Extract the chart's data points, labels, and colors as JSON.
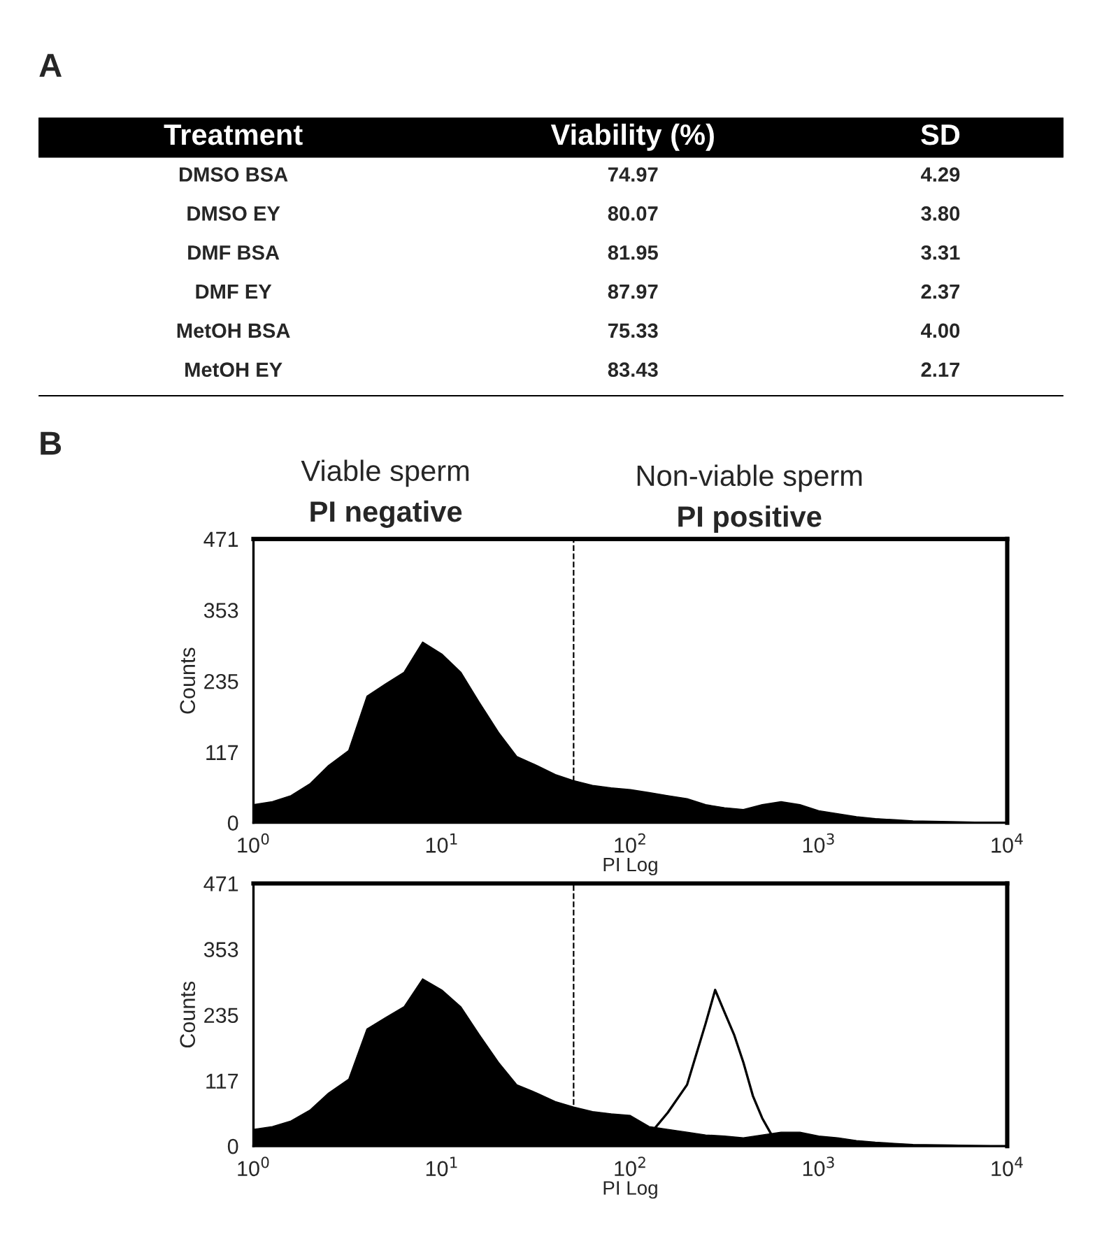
{
  "chart_data": [
    {
      "type": "other",
      "title": "A",
      "annotations": [
        "Treatment",
        "Viability (%)",
        "SD",
        "DMSO BSA",
        "74.97",
        "4.29",
        "DMSO EY",
        "80.07",
        "3.80",
        "DMF BSA",
        "81.95",
        "3.31",
        "DMF EY",
        "87.97",
        "2.37",
        "MetOH BSA",
        "75.33",
        "4.00",
        "MetOH EY",
        "83.43",
        "2.17"
      ]
    },
    {
      "type": "area",
      "title": "B",
      "annotations": [
        "Viable sperm",
        "PI negative",
        "Non-viable sperm",
        "PI positive"
      ],
      "xlabel": "PI Log",
      "ylabel": "Counts",
      "log": "x",
      "grid": false,
      "legend": false,
      "xlim": [
        1,
        10000
      ],
      "ylim": [
        0,
        471
      ],
      "xticks": [
        {
          "value": 1,
          "label": "10$^{0}$"
        },
        {
          "value": 10,
          "label": "10$^{1}$"
        },
        {
          "value": 100,
          "label": "10$^{2}$"
        },
        {
          "value": 1000,
          "label": "10$^{3}$"
        },
        {
          "value": 10000,
          "label": "10$^{4}$"
        }
      ],
      "yticks": [
        0,
        117,
        235,
        353,
        471
      ],
      "ref_lines": [
        {
          "axis": "x",
          "value": 50,
          "label": null,
          "color": "#000000",
          "line_style": "dashed"
        }
      ],
      "series": [
        {
          "color": "#000000",
          "x": [
            1,
            1.26,
            1.58,
            2,
            2.5,
            3.2,
            4,
            5,
            6.3,
            7.9,
            10,
            12.6,
            15.8,
            20,
            25,
            32,
            40,
            50,
            63,
            79,
            100,
            126,
            158,
            200,
            251,
            316,
            398,
            501,
            631,
            794,
            1000,
            1259,
            1585,
            1995,
            2512,
            3162,
            5012,
            10000
          ],
          "values": [
            30,
            35,
            45,
            65,
            95,
            120,
            210,
            230,
            250,
            300,
            280,
            250,
            200,
            150,
            110,
            95,
            80,
            70,
            62,
            58,
            55,
            50,
            45,
            40,
            30,
            25,
            22,
            30,
            35,
            30,
            20,
            15,
            10,
            7,
            5,
            3,
            2,
            0
          ]
        }
      ]
    },
    {
      "type": "area",
      "xlabel": "PI Log",
      "ylabel": "Counts",
      "log": "x",
      "grid": false,
      "legend": false,
      "xlim": [
        1,
        10000
      ],
      "ylim": [
        0,
        471
      ],
      "xticks": [
        {
          "value": 1,
          "label": "10$^{0}$"
        },
        {
          "value": 10,
          "label": "10$^{1}$"
        },
        {
          "value": 100,
          "label": "10$^{2}$"
        },
        {
          "value": 1000,
          "label": "10$^{3}$"
        },
        {
          "value": 10000,
          "label": "10$^{4}$"
        }
      ],
      "yticks": [
        0,
        117,
        235,
        353,
        471
      ],
      "ref_lines": [
        {
          "axis": "x",
          "value": 50,
          "label": null,
          "color": "#000000",
          "line_style": "dashed"
        }
      ],
      "series": [
        {
          "color": "#000000",
          "x": [
            1,
            1.26,
            1.58,
            2,
            2.5,
            3.2,
            4,
            5,
            6.3,
            7.9,
            10,
            12.6,
            15.8,
            20,
            25,
            32,
            40,
            50,
            63,
            79,
            100,
            126,
            158,
            200,
            251,
            316,
            398,
            501,
            631,
            794,
            1000,
            1259,
            1585,
            1995,
            2512,
            3162,
            5012,
            10000
          ],
          "values": [
            30,
            35,
            45,
            65,
            95,
            120,
            210,
            230,
            250,
            300,
            280,
            250,
            200,
            150,
            110,
            95,
            80,
            70,
            62,
            58,
            55,
            35,
            30,
            25,
            20,
            18,
            15,
            20,
            25,
            25,
            18,
            15,
            10,
            7,
            5,
            3,
            2,
            0
          ]
        },
        {
          "type": "line",
          "color": "#000000",
          "x": [
            100,
            126,
            158,
            200,
            251,
            282,
            316,
            355,
            398,
            447,
            501,
            562,
            631,
            708
          ],
          "values": [
            0,
            20,
            60,
            110,
            220,
            280,
            240,
            200,
            150,
            90,
            50,
            20,
            10,
            0
          ]
        }
      ]
    }
  ]
}
